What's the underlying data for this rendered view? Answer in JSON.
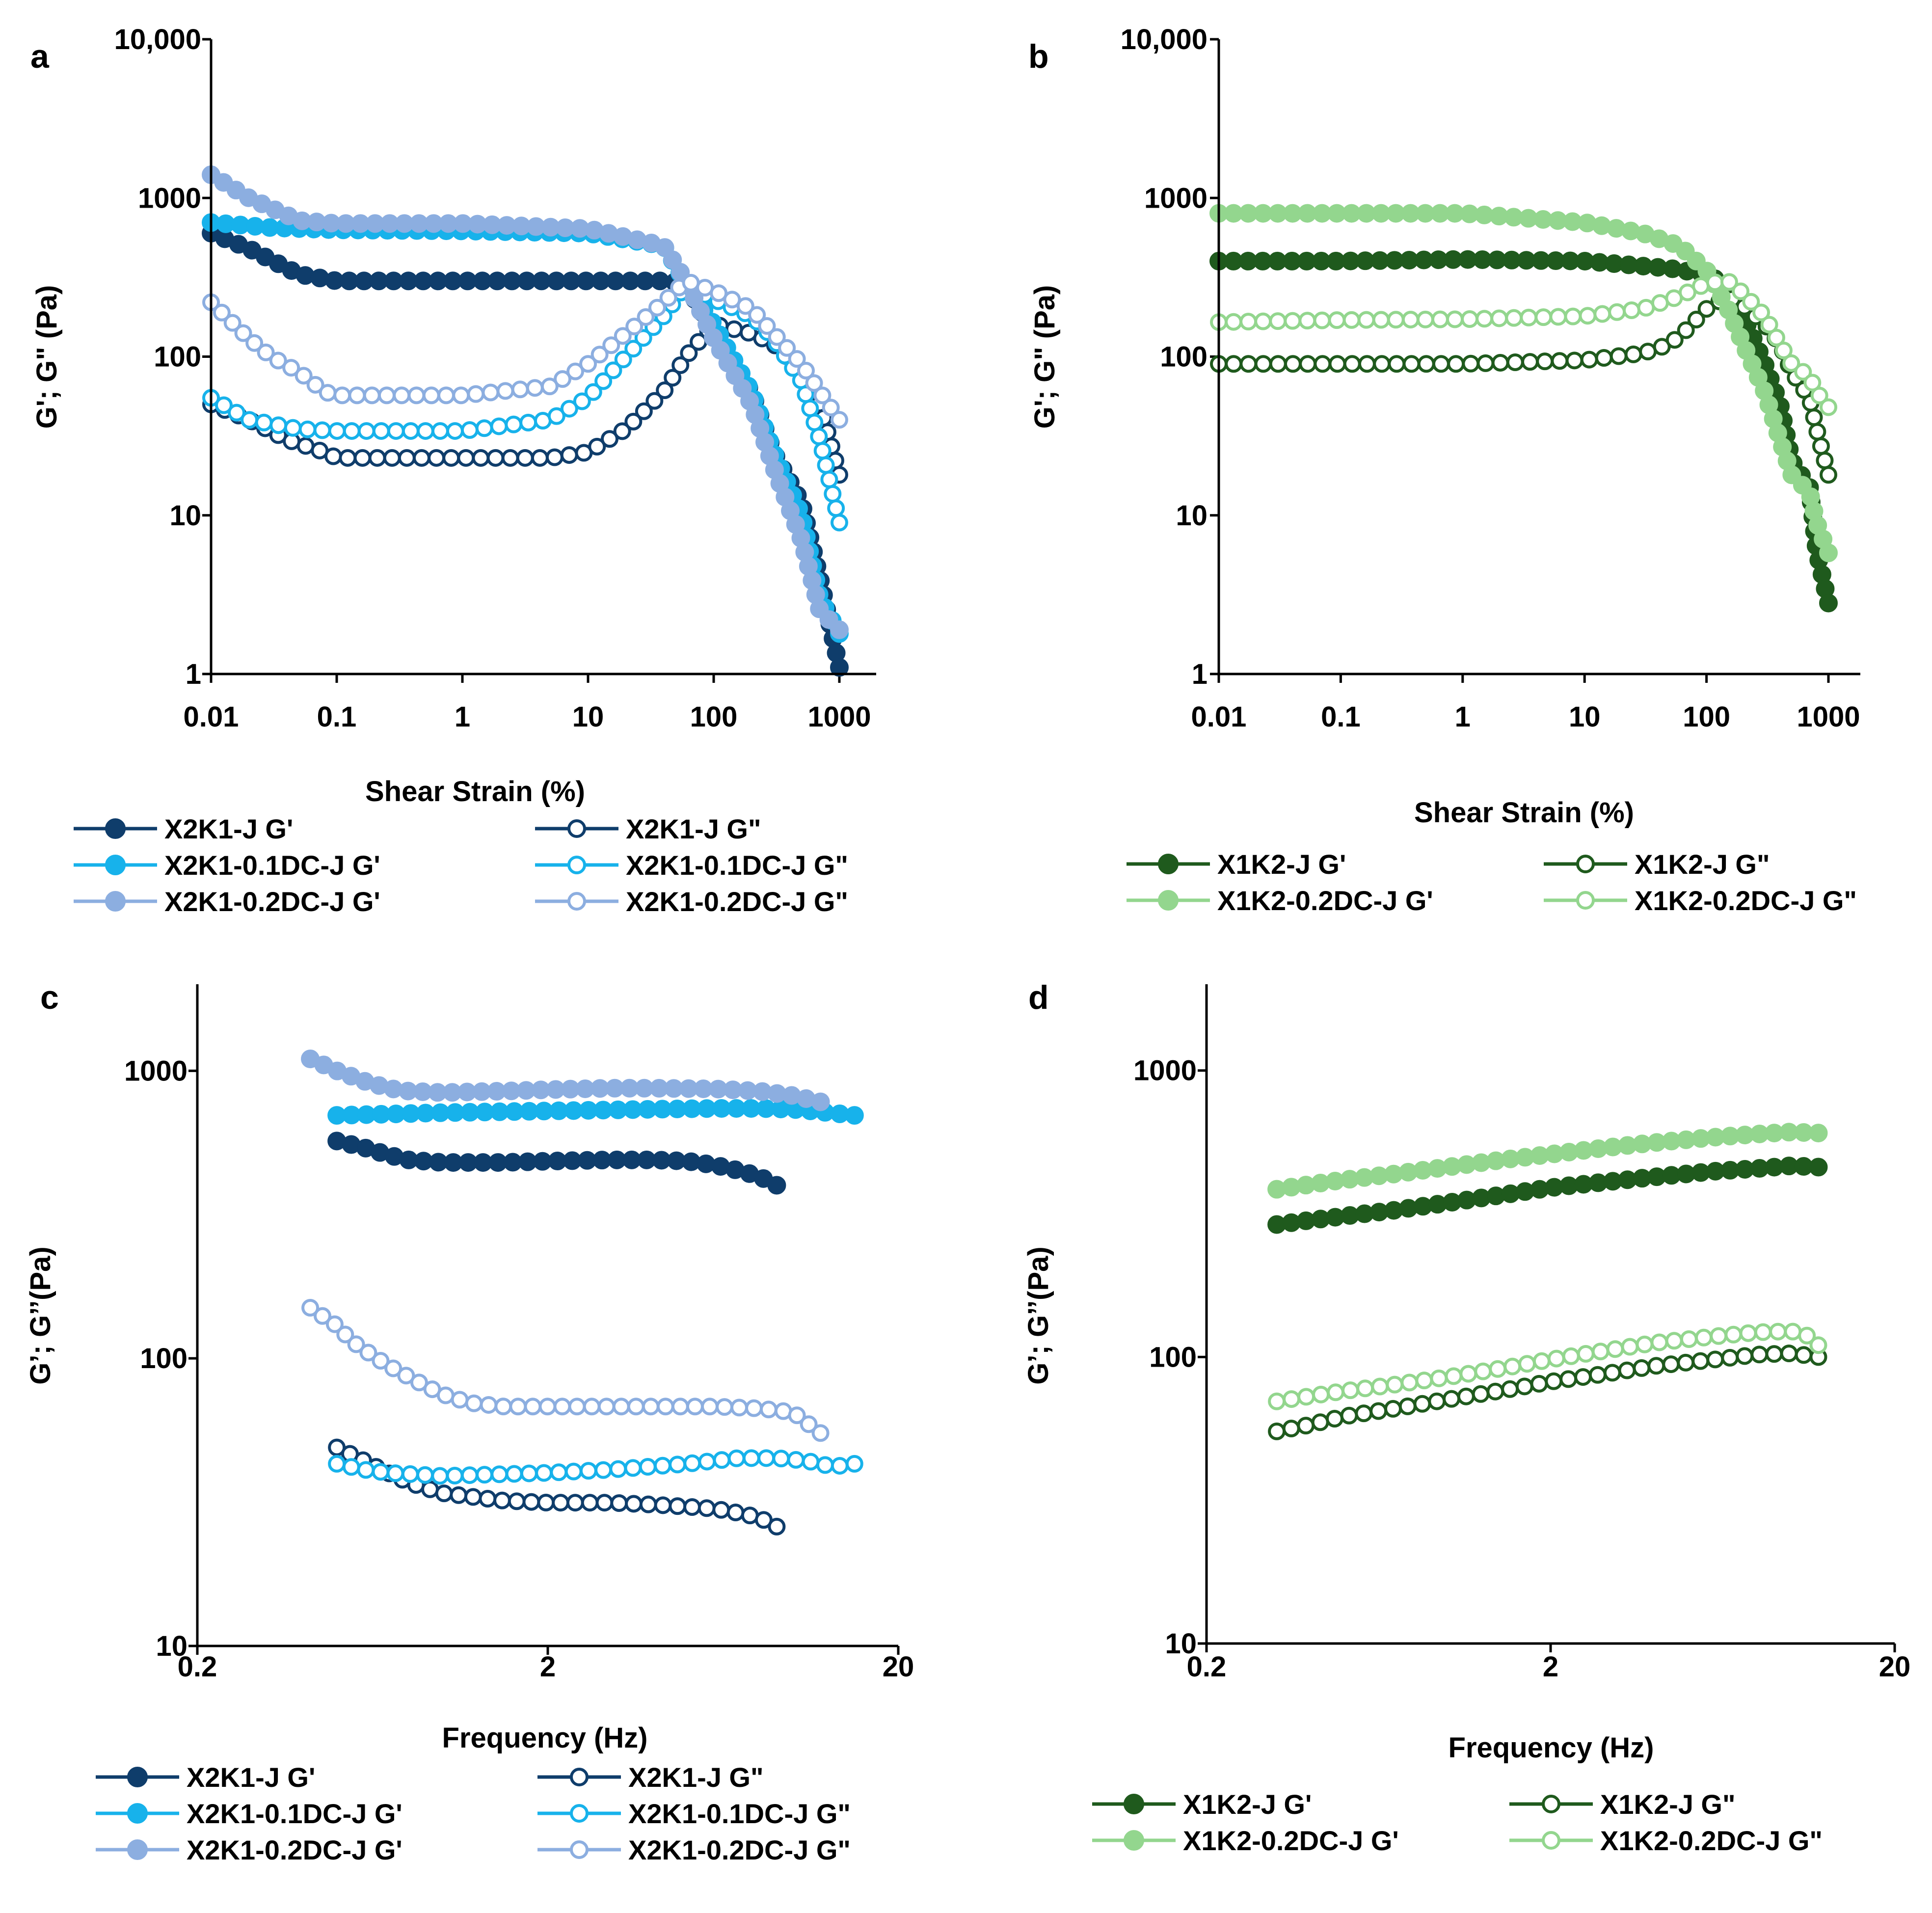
{
  "colors": {
    "X2K1-J": "#0f3d6b",
    "X2K1-0.1DC-J": "#17b2eb",
    "X2K1-0.2DC-J": "#8caee0",
    "X1K2-J": "#1f5a1d",
    "X1K2-0.2DC-J": "#93d68e"
  },
  "chart_data": [
    {
      "panel": "a",
      "type": "line",
      "xscale": "log",
      "yscale": "log",
      "xlabel": "Shear Strain (%)",
      "ylabel": "G'; G\" (Pa)",
      "xlim": [
        0.01,
        1000
      ],
      "ylim": [
        1,
        10000
      ],
      "xticks": [
        "0.01",
        "0.1",
        "1",
        "10",
        "100",
        "1000"
      ],
      "yticks": [
        "1",
        "10",
        "100",
        "1000",
        "10,000"
      ],
      "series": [
        {
          "name": "X2K1-J G'",
          "color_key": "X2K1-J",
          "filled": true,
          "x": [
            0.01,
            0.02,
            0.05,
            0.1,
            1,
            10,
            40,
            60,
            100,
            200,
            300,
            500,
            700,
            1000
          ],
          "y": [
            600,
            480,
            330,
            300,
            300,
            300,
            300,
            290,
            140,
            60,
            25,
            12,
            4,
            1.1
          ]
        },
        {
          "name": "X2K1-J G\"",
          "color_key": "X2K1-J",
          "filled": false,
          "x": [
            0.01,
            0.02,
            0.04,
            0.08,
            0.1,
            1,
            5,
            10,
            20,
            40,
            60,
            100,
            200,
            300,
            500,
            700,
            1000
          ],
          "y": [
            50,
            40,
            30,
            25,
            23,
            23,
            23,
            25,
            35,
            60,
            100,
            160,
            140,
            120,
            80,
            50,
            18
          ]
        },
        {
          "name": "X2K1-0.1DC-J G'",
          "color_key": "X2K1-0.1DC-J",
          "filled": true,
          "x": [
            0.01,
            0.03,
            0.1,
            1,
            10,
            40,
            60,
            100,
            200,
            300,
            500,
            700,
            1000
          ],
          "y": [
            700,
            650,
            630,
            620,
            600,
            500,
            290,
            160,
            60,
            25,
            10,
            3,
            1.8
          ]
        },
        {
          "name": "X2K1-0.1DC-J G\"",
          "color_key": "X2K1-0.1DC-J",
          "filled": false,
          "x": [
            0.01,
            0.02,
            0.05,
            0.1,
            1,
            5,
            10,
            20,
            40,
            60,
            100,
            200,
            300,
            500,
            700,
            1000
          ],
          "y": [
            55,
            40,
            35,
            34,
            34,
            40,
            55,
            100,
            180,
            280,
            230,
            180,
            130,
            70,
            30,
            9
          ]
        },
        {
          "name": "X2K1-0.2DC-J G'",
          "color_key": "X2K1-0.2DC-J",
          "filled": true,
          "x": [
            0.01,
            0.02,
            0.05,
            0.1,
            1,
            10,
            40,
            60,
            100,
            200,
            300,
            500,
            700,
            1000
          ],
          "y": [
            1400,
            1000,
            720,
            690,
            690,
            640,
            500,
            300,
            130,
            50,
            20,
            7,
            2.5,
            1.9
          ]
        },
        {
          "name": "X2K1-0.2DC-J G\"",
          "color_key": "X2K1-0.2DC-J",
          "filled": false,
          "x": [
            0.01,
            0.02,
            0.03,
            0.05,
            0.08,
            0.1,
            1,
            5,
            10,
            20,
            40,
            60,
            100,
            200,
            300,
            500,
            700,
            1000
          ],
          "y": [
            220,
            130,
            100,
            80,
            60,
            57,
            57,
            65,
            90,
            140,
            220,
            300,
            260,
            200,
            140,
            90,
            60,
            40
          ]
        }
      ],
      "legend": {
        "placement": "bottom",
        "entries": [
          "X2K1-J G'",
          "X2K1-J G\"",
          "X2K1-0.1DC-J G'",
          "X2K1-0.1DC-J G\"",
          "X2K1-0.2DC-J G'",
          "X2K1-0.2DC-J G\""
        ]
      }
    },
    {
      "panel": "b",
      "type": "line",
      "xscale": "log",
      "yscale": "log",
      "xlabel": "Shear Strain (%)",
      "ylabel": "G'; G\" (Pa)",
      "xlim": [
        0.01,
        1000
      ],
      "ylim": [
        1,
        10000
      ],
      "xticks": [
        "0.01",
        "0.1",
        "1",
        "10",
        "100",
        "1000"
      ],
      "yticks": [
        "1",
        "10",
        "100",
        "1000",
        "10,000"
      ],
      "series": [
        {
          "name": "X1K2-J G'",
          "color_key": "X1K2-J",
          "filled": true,
          "x": [
            0.01,
            0.1,
            1,
            10,
            50,
            100,
            150,
            200,
            300,
            400,
            500,
            700,
            800,
            1000
          ],
          "y": [
            400,
            400,
            410,
            400,
            360,
            330,
            280,
            180,
            90,
            50,
            22,
            15,
            6,
            2.8
          ]
        },
        {
          "name": "X1K2-J G\"",
          "color_key": "X1K2-J",
          "filled": false,
          "x": [
            0.01,
            0.1,
            1,
            10,
            30,
            50,
            70,
            100,
            150,
            200,
            300,
            400,
            500,
            700,
            800,
            1000
          ],
          "y": [
            90,
            90,
            90,
            95,
            105,
            120,
            150,
            200,
            240,
            210,
            160,
            120,
            80,
            55,
            35,
            18
          ]
        },
        {
          "name": "X1K2-0.2DC-J G'",
          "color_key": "X1K2-0.2DC-J",
          "filled": true,
          "x": [
            0.01,
            0.1,
            1,
            10,
            30,
            60,
            100,
            150,
            200,
            300,
            400,
            500,
            700,
            800,
            1000
          ],
          "y": [
            800,
            800,
            800,
            700,
            600,
            500,
            350,
            200,
            120,
            60,
            30,
            18,
            14,
            9,
            5.8
          ]
        },
        {
          "name": "X1K2-0.2DC-J G\"",
          "color_key": "X1K2-0.2DC-J",
          "filled": false,
          "x": [
            0.01,
            0.1,
            1,
            10,
            30,
            60,
            100,
            150,
            200,
            300,
            400,
            500,
            700,
            800,
            1000
          ],
          "y": [
            165,
            170,
            172,
            180,
            200,
            240,
            290,
            300,
            250,
            180,
            120,
            90,
            75,
            60,
            48
          ]
        }
      ],
      "legend": {
        "placement": "bottom",
        "entries": [
          "X1K2-J G'",
          "X1K2-J G\"",
          "X1K2-0.2DC-J G'",
          "X1K2-0.2DC-J G\""
        ]
      }
    },
    {
      "panel": "c",
      "type": "line",
      "xscale": "log",
      "yscale": "log",
      "xlabel": "Frequency (Hz)",
      "ylabel": "G’; G’’(Pa)",
      "xlim": [
        0.2,
        20
      ],
      "ylim": [
        10,
        2000
      ],
      "xticks": [
        "0.2",
        "2",
        "20"
      ],
      "yticks": [
        "10",
        "100",
        "1000"
      ],
      "series": [
        {
          "name": "X2K1-J G'",
          "color_key": "X2K1-J",
          "filled": true,
          "x": [
            0.5,
            0.6,
            0.7,
            0.8,
            1,
            1.5,
            2,
            3,
            4,
            5,
            6,
            7,
            8,
            9
          ],
          "y": [
            570,
            540,
            510,
            490,
            480,
            480,
            485,
            490,
            490,
            485,
            470,
            450,
            430,
            400
          ]
        },
        {
          "name": "X2K1-J G\"",
          "color_key": "X2K1-J",
          "filled": false,
          "x": [
            0.5,
            0.6,
            0.7,
            0.8,
            1,
            1.5,
            2,
            3,
            4,
            5,
            6,
            7,
            8,
            9
          ],
          "y": [
            49,
            44,
            40,
            37,
            34,
            32,
            31.5,
            31.5,
            31,
            30.5,
            30,
            29,
            28,
            26
          ]
        },
        {
          "name": "X2K1-0.1DC-J G'",
          "color_key": "X2K1-0.1DC-J",
          "filled": true,
          "x": [
            0.5,
            1,
            2,
            4,
            6,
            8,
            10,
            12,
            15
          ],
          "y": [
            700,
            715,
            725,
            735,
            740,
            740,
            735,
            720,
            700
          ]
        },
        {
          "name": "X2K1-0.1DC-J G\"",
          "color_key": "X2K1-0.1DC-J",
          "filled": false,
          "x": [
            0.5,
            0.6,
            0.7,
            1,
            2,
            3,
            5,
            7,
            9,
            11,
            13,
            15
          ],
          "y": [
            43,
            41,
            40,
            39,
            40,
            41,
            43,
            45,
            45,
            44,
            42,
            43
          ]
        },
        {
          "name": "X2K1-0.2DC-J G'",
          "color_key": "X2K1-0.2DC-J",
          "filled": true,
          "x": [
            0.42,
            0.5,
            0.6,
            0.7,
            0.8,
            1,
            1.5,
            2,
            3,
            4,
            6,
            8,
            10,
            12
          ],
          "y": [
            1100,
            1000,
            920,
            870,
            850,
            840,
            850,
            860,
            870,
            870,
            865,
            850,
            820,
            780
          ]
        },
        {
          "name": "X2K1-0.2DC-J G\"",
          "color_key": "X2K1-0.2DC-J",
          "filled": false,
          "x": [
            0.42,
            0.5,
            0.55,
            0.65,
            0.75,
            0.9,
            1,
            1.2,
            1.5,
            2,
            3,
            4,
            6,
            8,
            10,
            12
          ],
          "y": [
            150,
            130,
            115,
            100,
            90,
            80,
            75,
            70,
            68,
            68,
            68,
            68,
            68,
            67,
            65,
            55
          ]
        }
      ],
      "legend": {
        "placement": "bottom",
        "entries": [
          "X2K1-J G'",
          "X2K1-J G\"",
          "X2K1-0.1DC-J G'",
          "X2K1-0.1DC-J G\"",
          "X2K1-0.2DC-J G'",
          "X2K1-0.2DC-J G\""
        ]
      }
    },
    {
      "panel": "d",
      "type": "line",
      "xscale": "log",
      "yscale": "log",
      "xlabel": "Frequency (Hz)",
      "ylabel": "G’; G’’(Pa)",
      "xlim": [
        0.2,
        20
      ],
      "ylim": [
        10,
        2000
      ],
      "xticks": [
        "0.2",
        "2",
        "20"
      ],
      "yticks": [
        "10",
        "100",
        "1000"
      ],
      "series": [
        {
          "name": "X1K2-J G'",
          "color_key": "X1K2-J",
          "filled": true,
          "x": [
            0.32,
            0.4,
            0.5,
            0.7,
            1,
            1.5,
            2,
            3,
            4,
            6,
            8,
            10,
            12
          ],
          "y": [
            290,
            300,
            310,
            325,
            345,
            370,
            390,
            410,
            425,
            445,
            455,
            465,
            460
          ]
        },
        {
          "name": "X1K2-J G\"",
          "color_key": "X1K2-J",
          "filled": false,
          "x": [
            0.32,
            0.4,
            0.5,
            0.7,
            1,
            1.5,
            2,
            3,
            4,
            6,
            8,
            10,
            12
          ],
          "y": [
            55,
            58,
            62,
            66,
            71,
            77,
            82,
            88,
            93,
            98,
            102,
            103,
            100
          ]
        },
        {
          "name": "X1K2-0.2DC-J G'",
          "color_key": "X1K2-0.2DC-J",
          "filled": true,
          "x": [
            0.32,
            0.4,
            0.5,
            0.7,
            1,
            1.5,
            2,
            3,
            4,
            6,
            8,
            10,
            12
          ],
          "y": [
            385,
            400,
            415,
            435,
            460,
            490,
            510,
            540,
            560,
            585,
            600,
            610,
            605
          ]
        },
        {
          "name": "X1K2-0.2DC-J G\"",
          "color_key": "X1K2-0.2DC-J",
          "filled": false,
          "x": [
            0.32,
            0.4,
            0.5,
            0.7,
            1,
            1.5,
            2,
            3,
            4,
            6,
            8,
            10,
            11,
            12
          ],
          "y": [
            70,
            73,
            76,
            80,
            85,
            92,
            98,
            106,
            112,
            118,
            122,
            123,
            120,
            110
          ]
        }
      ],
      "legend": {
        "placement": "bottom",
        "entries": [
          "X1K2-J G'",
          "X1K2-J G\"",
          "X1K2-0.2DC-J G'",
          "X1K2-0.2DC-J G\""
        ]
      }
    }
  ]
}
